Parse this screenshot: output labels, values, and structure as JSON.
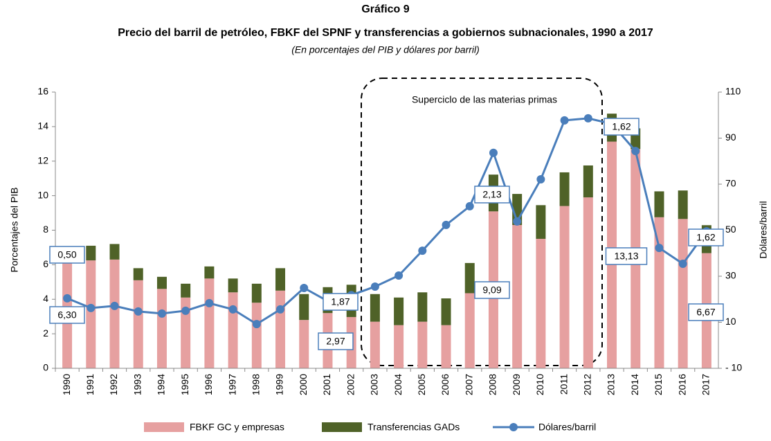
{
  "chart_data": {
    "type": "bar_line",
    "title": "Gráfico 9",
    "subtitle": "Precio del barril de petróleo, FBKF del SPNF y transferencias a gobiernos subnacionales, 1990 a 2017",
    "note": "(En porcentajes del PIB y dólares por barril)",
    "ylabel": "Porcentajes del PIB",
    "y2label": "Dólares/barril",
    "annotation": "Superciclo de las materias primas",
    "categories": [
      "1990",
      "1991",
      "1992",
      "1993",
      "1994",
      "1995",
      "1996",
      "1997",
      "1998",
      "1999",
      "2000",
      "2001",
      "2002",
      "2003",
      "2004",
      "2005",
      "2006",
      "2007",
      "2008",
      "2009",
      "2010",
      "2011",
      "2012",
      "2013",
      "2014",
      "2015",
      "2016",
      "2017"
    ],
    "ylim": [
      0,
      16
    ],
    "yticks": [
      0,
      2,
      4,
      6,
      8,
      10,
      12,
      14,
      16
    ],
    "y2lim": [
      -10,
      110
    ],
    "y2ticks": [
      {
        "value": -10,
        "label": "- 10"
      },
      10,
      30,
      50,
      70,
      90,
      110
    ],
    "series": [
      {
        "name": "FBKF GC y empresas",
        "type": "bar",
        "color": "#e6a0a0",
        "values": [
          6.3,
          6.25,
          6.3,
          5.1,
          4.6,
          4.1,
          5.2,
          4.4,
          3.8,
          4.5,
          2.8,
          3.2,
          2.97,
          2.7,
          2.5,
          2.7,
          2.5,
          4.35,
          9.09,
          8.3,
          7.5,
          9.4,
          9.9,
          13.13,
          12.7,
          8.75,
          8.65,
          6.67
        ],
        "value_labels": [
          "6,30",
          null,
          null,
          null,
          null,
          null,
          null,
          null,
          null,
          null,
          null,
          null,
          "2,97",
          null,
          null,
          null,
          null,
          null,
          "9,09",
          null,
          null,
          null,
          null,
          "13,13",
          null,
          null,
          null,
          "6,67"
        ]
      },
      {
        "name": "Transferencias GADs",
        "type": "bar",
        "color": "#4f6228",
        "values": [
          0.5,
          0.85,
          0.9,
          0.7,
          0.7,
          0.8,
          0.7,
          0.8,
          1.1,
          1.3,
          1.5,
          1.5,
          1.87,
          1.6,
          1.6,
          1.7,
          1.55,
          1.75,
          2.13,
          1.8,
          1.95,
          1.95,
          1.85,
          1.62,
          1.2,
          1.5,
          1.65,
          1.62
        ],
        "value_labels": [
          "0,50",
          null,
          null,
          null,
          null,
          null,
          null,
          null,
          null,
          null,
          null,
          null,
          "1,87",
          null,
          null,
          null,
          null,
          null,
          "2,13",
          null,
          null,
          null,
          null,
          "1,62",
          null,
          null,
          null,
          "1,62"
        ]
      },
      {
        "name": "Dólares/barril",
        "type": "line",
        "axis": "y2",
        "color": "#4a7ebb",
        "values": [
          20.4,
          16.2,
          17.1,
          14.7,
          13.8,
          15.0,
          18.3,
          15.6,
          9.2,
          15.6,
          24.9,
          19.2,
          21.8,
          25.5,
          30.3,
          41.1,
          52.3,
          60.4,
          83.6,
          53.8,
          72.1,
          97.7,
          98.6,
          96.2,
          84.4,
          42.3,
          35.4,
          49.5
        ]
      }
    ]
  }
}
